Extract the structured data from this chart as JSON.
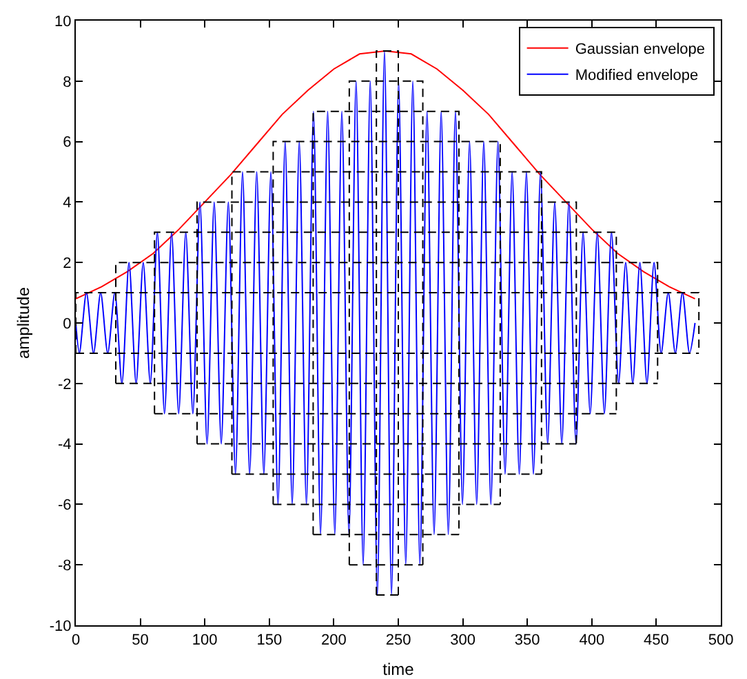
{
  "chart_data": {
    "type": "line",
    "xlabel": "time",
    "ylabel": "amplitude",
    "xlim": [
      0,
      500
    ],
    "ylim": [
      -10,
      10
    ],
    "xticks": [
      0,
      50,
      100,
      150,
      200,
      250,
      300,
      350,
      400,
      450,
      500
    ],
    "yticks": [
      -10,
      -8,
      -6,
      -4,
      -2,
      0,
      2,
      4,
      6,
      8,
      10
    ],
    "grid": false,
    "legend": "top right",
    "marker": "none",
    "line_style": "solid",
    "series": [
      {
        "name": "Gaussian envelope",
        "color": "#ff0000",
        "x": [
          0,
          20,
          40,
          60,
          80,
          100,
          120,
          140,
          160,
          180,
          200,
          220,
          240,
          260,
          280,
          300,
          320,
          340,
          360,
          380,
          400,
          420,
          440,
          460,
          480
        ],
        "values": [
          0.8,
          1.2,
          1.7,
          2.3,
          3.1,
          4.0,
          4.9,
          5.9,
          6.9,
          7.7,
          8.4,
          8.9,
          9,
          8.9,
          8.4,
          7.7,
          6.9,
          5.9,
          4.9,
          4.0,
          3.1,
          2.3,
          1.7,
          1.2,
          0.8
        ]
      },
      {
        "name": "Modified envelope",
        "color": "#0000ff",
        "x": [
          0,
          2.75,
          8.25,
          13.75,
          19.25,
          24.75,
          30.25,
          35.75,
          41.25,
          46.75,
          52.25,
          57.75,
          63.25,
          68.75,
          74.25,
          79.75,
          85.25,
          90.75,
          96.25,
          101.75,
          107.25,
          112.75,
          118.25,
          123.75,
          129.25,
          134.75,
          140.25,
          145.75,
          151.25,
          156.75,
          162.25,
          167.75,
          173.25,
          178.75,
          184.25,
          189.75,
          195.25,
          200.75,
          206.25,
          211.75,
          217.25,
          222.75,
          228.25,
          233.75,
          239.25,
          244.75,
          250.25,
          255.75,
          261.25,
          266.75,
          272.25,
          277.75,
          283.25,
          288.75,
          294.25,
          299.75,
          305.25,
          310.75,
          316.25,
          321.75,
          327.25,
          332.75,
          338.25,
          343.75,
          349.25,
          354.75,
          360.25,
          365.75,
          371.25,
          376.75,
          382.25,
          387.75,
          393.25,
          398.75,
          404.25,
          409.75,
          415.25,
          420.75,
          426.25,
          431.75,
          437.25,
          442.75,
          448.25,
          453.75,
          459.25,
          464.75,
          470.25,
          475.75,
          480
        ],
        "values": [
          0,
          -1,
          1,
          -1,
          1,
          -1,
          1,
          -2,
          2,
          -2,
          2,
          -2,
          3,
          -3,
          3,
          -3,
          3,
          -3,
          4,
          -4,
          4,
          -4,
          4,
          -5,
          5,
          -5,
          5,
          -5,
          5,
          -6,
          6,
          -6,
          6,
          -6,
          7,
          -7,
          7,
          -7,
          7,
          -7,
          8,
          -8,
          8,
          -9,
          9,
          -9,
          8,
          -8,
          8,
          -8,
          7,
          -7,
          7,
          -7,
          7,
          -6,
          6,
          -6,
          6,
          -6,
          6,
          -5,
          5,
          -5,
          5,
          -5,
          5,
          -4,
          4,
          -4,
          4,
          -4,
          3,
          -3,
          3,
          -3,
          3,
          -2,
          2,
          -2,
          2,
          -2,
          2,
          -1,
          1,
          -1,
          1,
          -1,
          0
        ]
      },
      {
        "color": "#000000",
        "line_style": "dashed",
        "x": [
          0,
          0,
          483,
          483
        ],
        "values": [
          -1,
          1,
          1,
          -1
        ]
      },
      {
        "color": "#000000",
        "line_style": "dashed",
        "x": [
          0,
          483
        ],
        "values": [
          -1,
          -1
        ]
      },
      {
        "color": "#000000",
        "line_style": "dashed",
        "x": [
          31,
          31,
          451,
          451
        ],
        "values": [
          -2,
          2,
          2,
          -2
        ]
      },
      {
        "color": "#000000",
        "line_style": "dashed",
        "x": [
          31,
          451
        ],
        "values": [
          -2,
          -2
        ]
      },
      {
        "color": "#000000",
        "line_style": "dashed",
        "x": [
          61,
          61,
          419,
          419
        ],
        "values": [
          -3,
          3,
          3,
          -3
        ]
      },
      {
        "color": "#000000",
        "line_style": "dashed",
        "x": [
          61,
          419
        ],
        "values": [
          -3,
          -3
        ]
      },
      {
        "color": "#000000",
        "line_style": "dashed",
        "x": [
          94,
          94,
          388,
          388
        ],
        "values": [
          -4,
          4,
          4,
          -4
        ]
      },
      {
        "color": "#000000",
        "line_style": "dashed",
        "x": [
          94,
          388
        ],
        "values": [
          -4,
          -4
        ]
      },
      {
        "color": "#000000",
        "line_style": "dashed",
        "x": [
          121,
          121,
          361,
          361
        ],
        "values": [
          -5,
          5,
          5,
          -5
        ]
      },
      {
        "color": "#000000",
        "line_style": "dashed",
        "x": [
          121,
          361
        ],
        "values": [
          -5,
          -5
        ]
      },
      {
        "color": "#000000",
        "line_style": "dashed",
        "x": [
          153,
          153,
          329,
          329
        ],
        "values": [
          -6,
          6,
          6,
          -6
        ]
      },
      {
        "color": "#000000",
        "line_style": "dashed",
        "x": [
          153,
          329
        ],
        "values": [
          -6,
          -6
        ]
      },
      {
        "color": "#000000",
        "line_style": "dashed",
        "x": [
          184,
          184,
          297,
          297
        ],
        "values": [
          -7,
          7,
          7,
          -7
        ]
      },
      {
        "color": "#000000",
        "line_style": "dashed",
        "x": [
          184,
          297
        ],
        "values": [
          -7,
          -7
        ]
      },
      {
        "color": "#000000",
        "line_style": "dashed",
        "x": [
          212,
          212,
          269,
          269
        ],
        "values": [
          -8,
          8,
          8,
          -8
        ]
      },
      {
        "color": "#000000",
        "line_style": "dashed",
        "x": [
          212,
          269
        ],
        "values": [
          -8,
          -8
        ]
      },
      {
        "color": "#000000",
        "line_style": "dashed",
        "x": [
          233,
          233,
          250,
          250
        ],
        "values": [
          -9,
          9,
          9,
          -9
        ]
      },
      {
        "color": "#000000",
        "line_style": "dashed",
        "x": [
          233,
          250
        ],
        "values": [
          -9,
          -9
        ]
      }
    ]
  }
}
